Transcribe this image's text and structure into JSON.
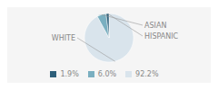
{
  "chart_data": {
    "type": "pie",
    "categories": [
      "WHITE",
      "ASIAN",
      "HISPANIC"
    ],
    "values": [
      92.2,
      6.0,
      1.9
    ],
    "value_labels": [
      "92.2%",
      "6.0%",
      "1.9%"
    ],
    "colors": [
      "#d9e4ec",
      "#7aafc0",
      "#2d5f7a"
    ],
    "legend": "bottom"
  }
}
